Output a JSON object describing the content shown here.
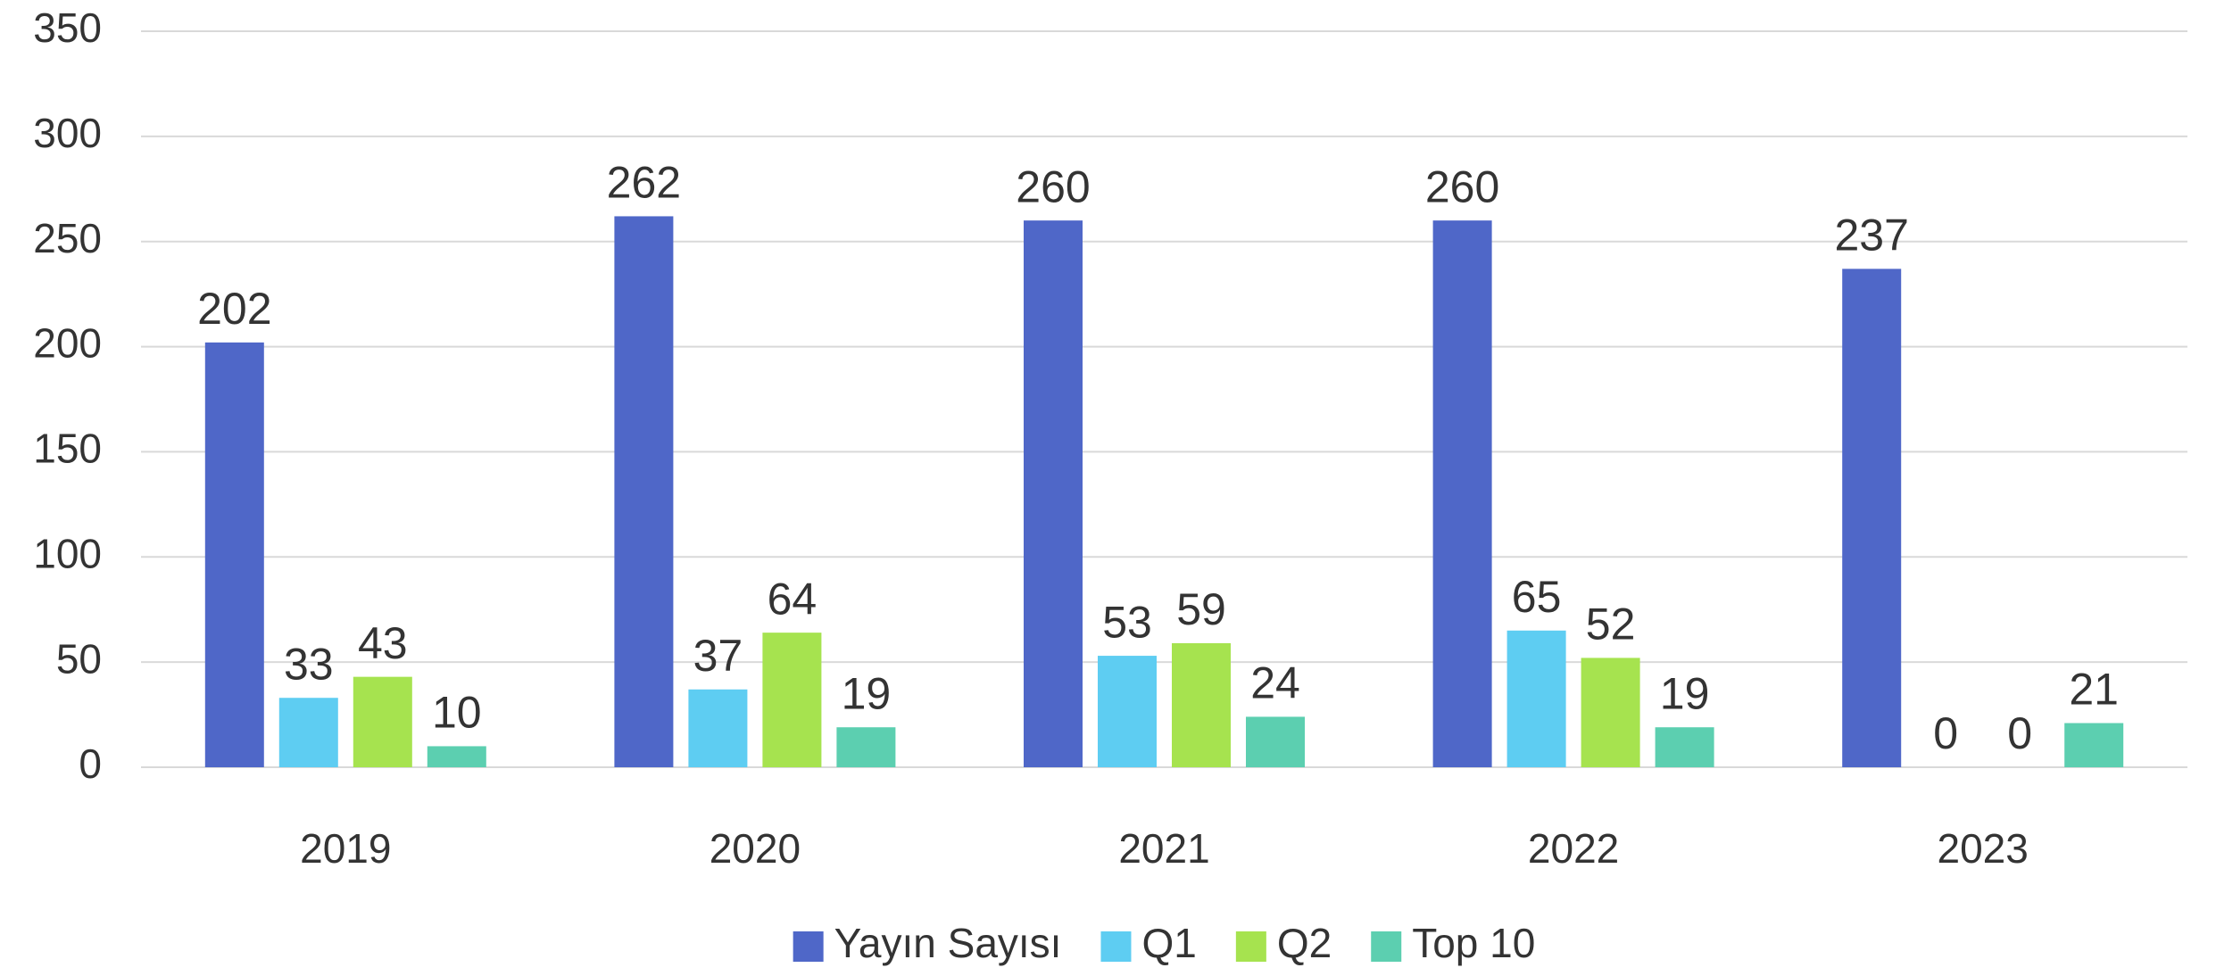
{
  "chart_data": {
    "type": "bar",
    "categories": [
      "2019",
      "2020",
      "2021",
      "2022",
      "2023"
    ],
    "series": [
      {
        "name": "Yayın Sayısı",
        "color": "#4f67c8",
        "values": [
          202,
          262,
          260,
          260,
          237
        ]
      },
      {
        "name": "Q1",
        "color": "#5ecdf2",
        "values": [
          33,
          37,
          53,
          65,
          0
        ]
      },
      {
        "name": "Q2",
        "color": "#a6e34f",
        "values": [
          43,
          64,
          59,
          52,
          0
        ]
      },
      {
        "name": "Top 10",
        "color": "#5ccfb0",
        "values": [
          10,
          19,
          24,
          19,
          21
        ]
      }
    ],
    "ylim": [
      0,
      350
    ],
    "yticks": [
      0,
      50,
      100,
      150,
      200,
      250,
      300,
      350
    ],
    "grid": true,
    "legend": "bottom"
  }
}
